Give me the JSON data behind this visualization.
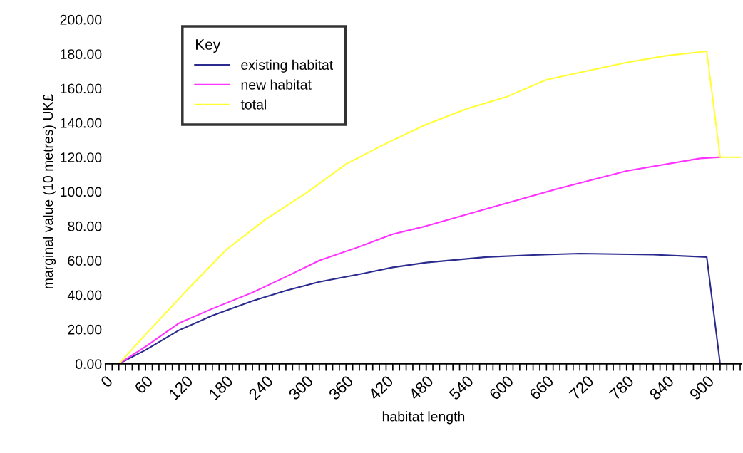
{
  "chart_data": {
    "type": "line",
    "xlabel": "habitat length",
    "ylabel": "marginal value (10 metres) UK£",
    "legend_title": "Key",
    "legend": "top left",
    "grid": false,
    "marker": "none",
    "line_style": "solid",
    "xlim": [
      0,
      952
    ],
    "ylim": [
      0,
      200
    ],
    "xticks": [
      0,
      {
        "value": 10,
        "label": null
      },
      {
        "value": 20,
        "label": null
      },
      {
        "value": 30,
        "label": null
      },
      {
        "value": 40,
        "label": null
      },
      {
        "value": 50,
        "label": null
      },
      60,
      {
        "value": 70,
        "label": null
      },
      {
        "value": 80,
        "label": null
      },
      {
        "value": 90,
        "label": null
      },
      {
        "value": 100,
        "label": null
      },
      {
        "value": 110,
        "label": null
      },
      120,
      {
        "value": 130,
        "label": null
      },
      {
        "value": 140,
        "label": null
      },
      {
        "value": 150,
        "label": null
      },
      {
        "value": 160,
        "label": null
      },
      {
        "value": 170,
        "label": null
      },
      180,
      {
        "value": 190,
        "label": null
      },
      {
        "value": 200,
        "label": null
      },
      {
        "value": 210,
        "label": null
      },
      {
        "value": 220,
        "label": null
      },
      {
        "value": 230,
        "label": null
      },
      240,
      {
        "value": 250,
        "label": null
      },
      {
        "value": 260,
        "label": null
      },
      {
        "value": 270,
        "label": null
      },
      {
        "value": 280,
        "label": null
      },
      {
        "value": 290,
        "label": null
      },
      300,
      {
        "value": 310,
        "label": null
      },
      {
        "value": 320,
        "label": null
      },
      {
        "value": 330,
        "label": null
      },
      {
        "value": 340,
        "label": null
      },
      {
        "value": 350,
        "label": null
      },
      360,
      {
        "value": 370,
        "label": null
      },
      {
        "value": 380,
        "label": null
      },
      {
        "value": 390,
        "label": null
      },
      {
        "value": 400,
        "label": null
      },
      {
        "value": 410,
        "label": null
      },
      420,
      {
        "value": 430,
        "label": null
      },
      {
        "value": 440,
        "label": null
      },
      {
        "value": 450,
        "label": null
      },
      {
        "value": 460,
        "label": null
      },
      {
        "value": 470,
        "label": null
      },
      480,
      {
        "value": 490,
        "label": null
      },
      {
        "value": 500,
        "label": null
      },
      {
        "value": 510,
        "label": null
      },
      {
        "value": 520,
        "label": null
      },
      {
        "value": 530,
        "label": null
      },
      540,
      {
        "value": 550,
        "label": null
      },
      {
        "value": 560,
        "label": null
      },
      {
        "value": 570,
        "label": null
      },
      {
        "value": 580,
        "label": null
      },
      {
        "value": 590,
        "label": null
      },
      600,
      {
        "value": 610,
        "label": null
      },
      {
        "value": 620,
        "label": null
      },
      {
        "value": 630,
        "label": null
      },
      {
        "value": 640,
        "label": null
      },
      {
        "value": 650,
        "label": null
      },
      660,
      {
        "value": 670,
        "label": null
      },
      {
        "value": 680,
        "label": null
      },
      {
        "value": 690,
        "label": null
      },
      {
        "value": 700,
        "label": null
      },
      {
        "value": 710,
        "label": null
      },
      720,
      {
        "value": 730,
        "label": null
      },
      {
        "value": 740,
        "label": null
      },
      {
        "value": 750,
        "label": null
      },
      {
        "value": 760,
        "label": null
      },
      {
        "value": 770,
        "label": null
      },
      780,
      {
        "value": 790,
        "label": null
      },
      {
        "value": 800,
        "label": null
      },
      {
        "value": 810,
        "label": null
      },
      {
        "value": 820,
        "label": null
      },
      {
        "value": 830,
        "label": null
      },
      840,
      {
        "value": 850,
        "label": null
      },
      {
        "value": 860,
        "label": null
      },
      {
        "value": 870,
        "label": null
      },
      {
        "value": 880,
        "label": null
      },
      {
        "value": 890,
        "label": null
      },
      900,
      {
        "value": 910,
        "label": null
      },
      {
        "value": 920,
        "label": null
      },
      {
        "value": 930,
        "label": null
      },
      {
        "value": 940,
        "label": null
      },
      {
        "value": 950,
        "label": null
      }
    ],
    "yticks": [
      {
        "value": 0,
        "label": "0.00"
      },
      {
        "value": 20,
        "label": "20.00"
      },
      {
        "value": 40,
        "label": "40.00"
      },
      {
        "value": 60,
        "label": "60.00"
      },
      {
        "value": 80,
        "label": "80.00"
      },
      {
        "value": 100,
        "label": "100.00"
      },
      {
        "value": 120,
        "label": "120.00"
      },
      {
        "value": 140,
        "label": "140.00"
      },
      {
        "value": 160,
        "label": "160.00"
      },
      {
        "value": 180,
        "label": "180.00"
      },
      {
        "value": 200,
        "label": "200.00"
      }
    ],
    "series": [
      {
        "name": "existing habitat",
        "color": "#2b2b8f",
        "x": [
          20,
          60,
          110,
          160,
          220,
          270,
          320,
          380,
          430,
          480,
          570,
          640,
          710,
          820,
          900,
          920
        ],
        "values": [
          0,
          8,
          19.5,
          28,
          36.5,
          42.5,
          47.6,
          52,
          56,
          58.8,
          62,
          63.2,
          64,
          63.4,
          62,
          0
        ]
      },
      {
        "name": "new habitat",
        "color": "#ff33ff",
        "x": [
          20,
          60,
          110,
          160,
          220,
          270,
          320,
          380,
          430,
          480,
          570,
          680,
          780,
          890,
          920
        ],
        "values": [
          0,
          10,
          23.6,
          32,
          41.4,
          50.5,
          60,
          68,
          75.3,
          80,
          90,
          102,
          112,
          119.3,
          120
        ]
      },
      {
        "name": "total",
        "color": "#ffff33",
        "x": [
          20,
          60,
          120,
          180,
          240,
          300,
          360,
          420,
          480,
          540,
          600,
          660,
          720,
          780,
          840,
          900,
          920,
          950
        ],
        "values": [
          0,
          17,
          42,
          66,
          84,
          99,
          116,
          128,
          139,
          148,
          155,
          165,
          170,
          175,
          179,
          181.5,
          120,
          120
        ]
      }
    ]
  }
}
